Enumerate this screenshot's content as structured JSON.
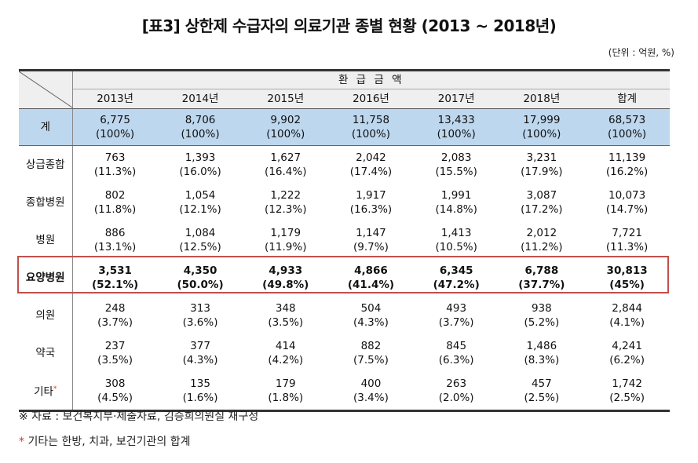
{
  "title": "[표3] 상한제 수급자의 의료기관 종별 현황 (2013 ~ 2018년)",
  "unit": "(단위 : 억원, %)",
  "group_header": "환 급 금 액",
  "columns": [
    "2013년",
    "2014년",
    "2015년",
    "2016년",
    "2017년",
    "2018년",
    "합계"
  ],
  "rows": [
    {
      "label": "계",
      "cells": [
        [
          "6,775",
          "(100%)"
        ],
        [
          "8,706",
          "(100%)"
        ],
        [
          "9,902",
          "(100%)"
        ],
        [
          "11,758",
          "(100%)"
        ],
        [
          "13,433",
          "(100%)"
        ],
        [
          "17,999",
          "(100%)"
        ],
        [
          "68,573",
          "(100%)"
        ]
      ]
    },
    {
      "label": "상급종합",
      "cells": [
        [
          "763",
          "(11.3%)"
        ],
        [
          "1,393",
          "(16.0%)"
        ],
        [
          "1,627",
          "(16.4%)"
        ],
        [
          "2,042",
          "(17.4%)"
        ],
        [
          "2,083",
          "(15.5%)"
        ],
        [
          "3,231",
          "(17.9%)"
        ],
        [
          "11,139",
          "(16.2%)"
        ]
      ]
    },
    {
      "label": "종합병원",
      "cells": [
        [
          "802",
          "(11.8%)"
        ],
        [
          "1,054",
          "(12.1%)"
        ],
        [
          "1,222",
          "(12.3%)"
        ],
        [
          "1,917",
          "(16.3%)"
        ],
        [
          "1,991",
          "(14.8%)"
        ],
        [
          "3,087",
          "(17.2%)"
        ],
        [
          "10,073",
          "(14.7%)"
        ]
      ]
    },
    {
      "label": "병원",
      "cells": [
        [
          "886",
          "(13.1%)"
        ],
        [
          "1,084",
          "(12.5%)"
        ],
        [
          "1,179",
          "(11.9%)"
        ],
        [
          "1,147",
          "(9.7%)"
        ],
        [
          "1,413",
          "(10.5%)"
        ],
        [
          "2,012",
          "(11.2%)"
        ],
        [
          "7,721",
          "(11.3%)"
        ]
      ]
    },
    {
      "label": "요양병원",
      "cells": [
        [
          "3,531",
          "(52.1%)"
        ],
        [
          "4,350",
          "(50.0%)"
        ],
        [
          "4,933",
          "(49.8%)"
        ],
        [
          "4,866",
          "(41.4%)"
        ],
        [
          "6,345",
          "(47.2%)"
        ],
        [
          "6,788",
          "(37.7%)"
        ],
        [
          "30,813",
          "(45%)"
        ]
      ]
    },
    {
      "label": "의원",
      "cells": [
        [
          "248",
          "(3.7%)"
        ],
        [
          "313",
          "(3.6%)"
        ],
        [
          "348",
          "(3.5%)"
        ],
        [
          "504",
          "(4.3%)"
        ],
        [
          "493",
          "(3.7%)"
        ],
        [
          "938",
          "(5.2%)"
        ],
        [
          "2,844",
          "(4.1%)"
        ]
      ]
    },
    {
      "label": "약국",
      "cells": [
        [
          "237",
          "(3.5%)"
        ],
        [
          "377",
          "(4.3%)"
        ],
        [
          "414",
          "(4.2%)"
        ],
        [
          "882",
          "(7.5%)"
        ],
        [
          "845",
          "(6.3%)"
        ],
        [
          "1,486",
          "(8.3%)"
        ],
        [
          "4,241",
          "(6.2%)"
        ]
      ]
    },
    {
      "label": "기타",
      "label_mark": "*",
      "cells": [
        [
          "308",
          "(4.5%)"
        ],
        [
          "135",
          "(1.6%)"
        ],
        [
          "179",
          "(1.8%)"
        ],
        [
          "400",
          "(3.4%)"
        ],
        [
          "263",
          "(2.0%)"
        ],
        [
          "457",
          "(2.5%)"
        ],
        [
          "1,742",
          "(2.5%)"
        ]
      ]
    }
  ],
  "notes": {
    "source": "※ 자료 : 보건복지부·제출자료, 김승희의원실 재구성",
    "footnote_mark": "*",
    "footnote": "기타는 한방, 치과, 보건기관의 합계"
  },
  "colors": {
    "total_row_bg": "#bdd7ee",
    "highlight_border": "#c0504d",
    "header_bg": "#efefef"
  }
}
